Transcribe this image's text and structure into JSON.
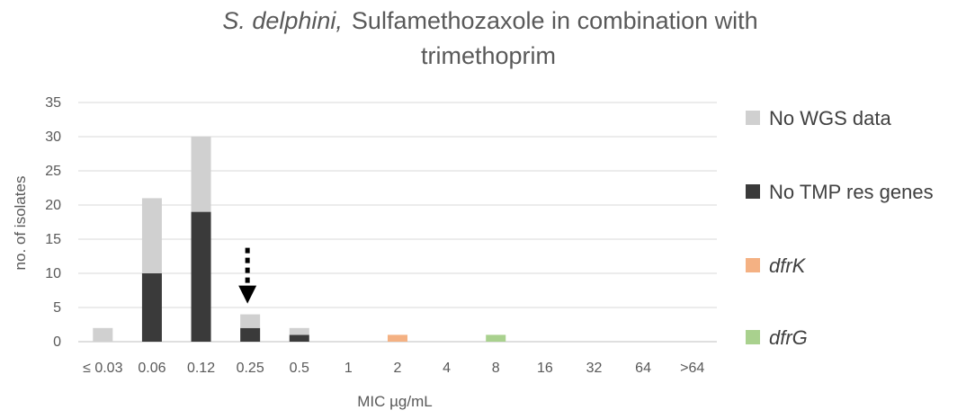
{
  "chart_data": {
    "type": "bar",
    "stacked": true,
    "title_italic": "S. delphini,",
    "title_rest": "Sulfamethozaxole in combination with",
    "title_line2": "trimethoprim",
    "xlabel": "MIC µg/mL",
    "ylabel": "no. of isolates",
    "ylim": [
      0,
      35
    ],
    "yticks": [
      "0",
      "5",
      "10",
      "15",
      "20",
      "25",
      "30",
      "35"
    ],
    "grid": true,
    "legend_position": "right",
    "categories": [
      "≤ 0.03",
      "0.06",
      "0.12",
      "0.25",
      "0.5",
      "1",
      "2",
      "4",
      "8",
      "16",
      "32",
      "64",
      ">64"
    ],
    "series": [
      {
        "name": "No TMP res genes",
        "italic": false,
        "color": "#3a3a3a",
        "values": [
          0,
          10,
          19,
          2,
          1,
          0,
          0,
          0,
          0,
          0,
          0,
          0,
          0
        ]
      },
      {
        "name": "No WGS data",
        "italic": false,
        "color": "#d0d0d0",
        "values": [
          2,
          11,
          11,
          2,
          1,
          0,
          0,
          0,
          0,
          0,
          0,
          0,
          0
        ]
      },
      {
        "name": "dfrK",
        "italic": true,
        "color": "#f4b183",
        "values": [
          0,
          0,
          0,
          0,
          0,
          0,
          1,
          0,
          0,
          0,
          0,
          0,
          0
        ]
      },
      {
        "name": "dfrG",
        "italic": true,
        "color": "#a9d18e",
        "values": [
          0,
          0,
          0,
          0,
          0,
          0,
          0,
          0,
          1,
          0,
          0,
          0,
          0
        ]
      }
    ],
    "legend_order": [
      "No WGS data",
      "No TMP res genes",
      "dfrK",
      "dfrG"
    ],
    "annotation": {
      "type": "dashed-down-arrow",
      "category": "0.25"
    }
  }
}
